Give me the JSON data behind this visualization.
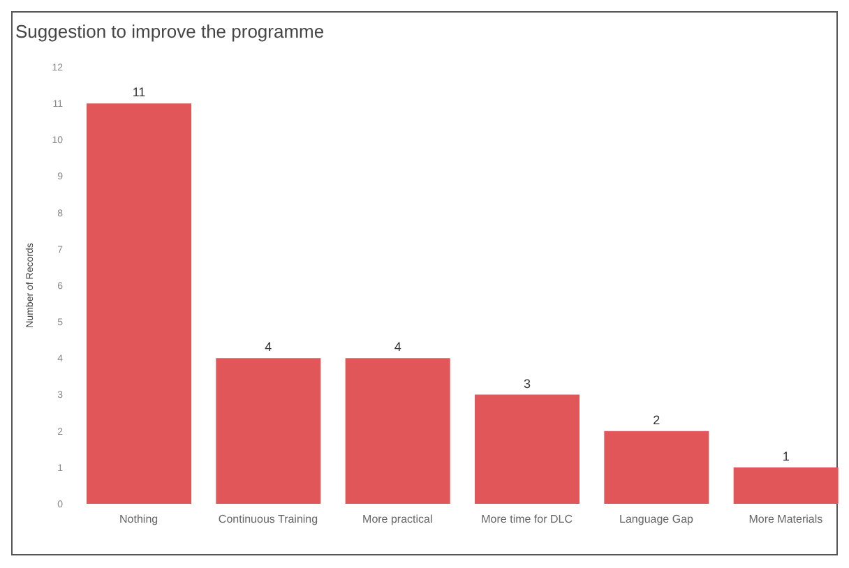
{
  "chart_data": {
    "type": "bar",
    "title": "Suggestion to improve the programme",
    "ylabel": "Number of Records",
    "categories": [
      "Nothing",
      "Continuous Training",
      "More practical",
      "More time for DLC",
      "Language Gap",
      "More Materials"
    ],
    "values": [
      11,
      4,
      4,
      3,
      2,
      1
    ],
    "color": "#e15759",
    "ylim": [
      0,
      12
    ],
    "yticks": [
      0,
      1,
      2,
      3,
      4,
      5,
      6,
      7,
      8,
      9,
      10,
      11,
      12
    ],
    "grid": false,
    "data_labels": true
  }
}
